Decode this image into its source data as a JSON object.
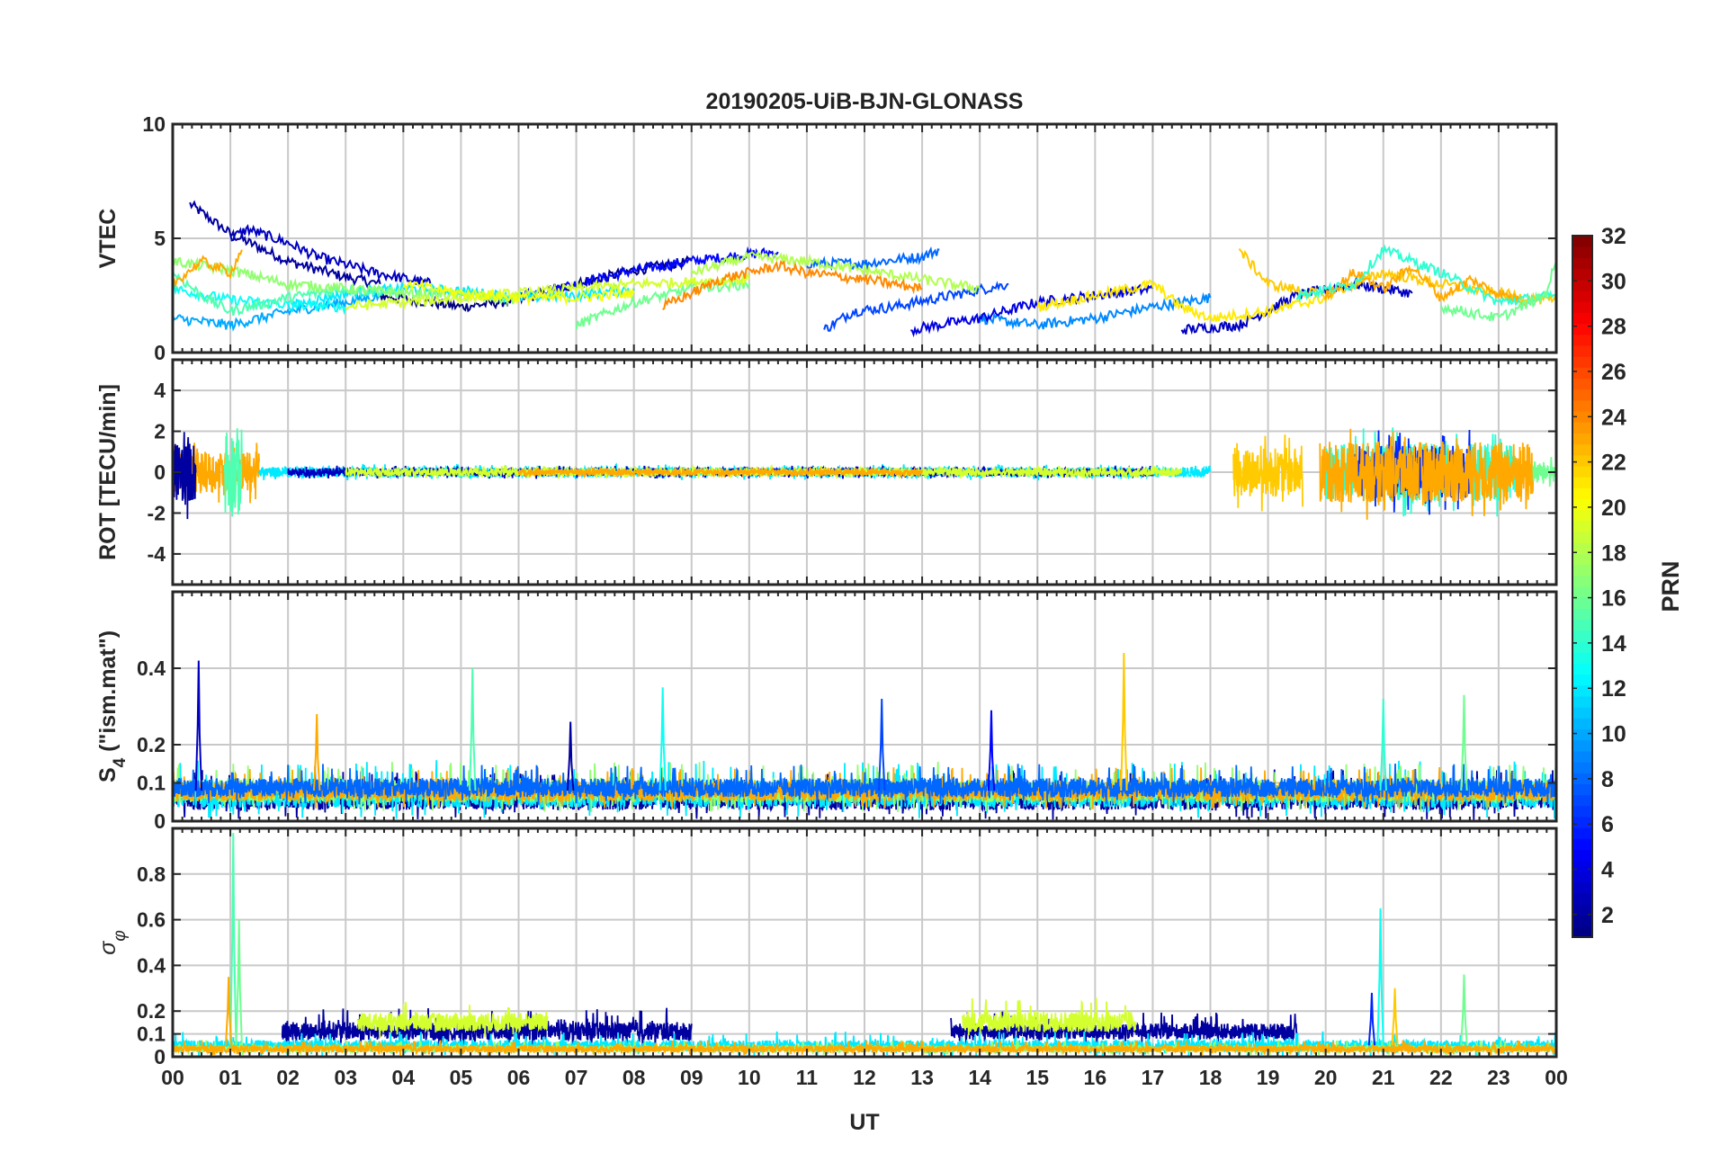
{
  "chart_data": {
    "type": "line",
    "title": "20190205-UiB-BJN-GLONASS",
    "xlabel": "UT",
    "x_tick_labels": [
      "00",
      "01",
      "02",
      "03",
      "04",
      "05",
      "06",
      "07",
      "08",
      "09",
      "10",
      "11",
      "12",
      "13",
      "14",
      "15",
      "16",
      "17",
      "18",
      "19",
      "20",
      "21",
      "22",
      "23",
      "00"
    ],
    "x_range_hours": [
      0,
      24
    ],
    "grid": true,
    "panels": [
      {
        "id": "vtec",
        "ylabel": "VTEC",
        "ylim": [
          0,
          10
        ],
        "yticks": [
          {
            "v": 0,
            "label": "0"
          },
          {
            "v": 5,
            "label": "5"
          },
          {
            "v": 10,
            "label": "10"
          }
        ],
        "series": [
          {
            "prn": 2,
            "x": [
              0.3,
              1.0,
              2.0,
              3.0,
              3.6
            ],
            "y": [
              6.5,
              5.2,
              4.0,
              3.3,
              3.0
            ]
          },
          {
            "prn": 1,
            "x": [
              3.6,
              5.0,
              6.0,
              7.0,
              8.0,
              9.0
            ],
            "y": [
              2.5,
              2.0,
              2.3,
              3.0,
              3.6,
              4.0
            ]
          },
          {
            "prn": 5,
            "x": [
              6.0,
              7.0,
              8.0,
              9.0,
              10.0,
              10.5
            ],
            "y": [
              2.5,
              3.0,
              3.6,
              4.0,
              4.3,
              4.4
            ]
          },
          {
            "prn": 3,
            "x": [
              1.0,
              1.3,
              2.0,
              2.5,
              3.5,
              4.5
            ],
            "y": [
              5.0,
              5.4,
              4.8,
              4.2,
              3.5,
              3.0
            ]
          },
          {
            "prn": 8,
            "x": [
              11.0,
              12.0,
              13.0,
              13.3
            ],
            "y": [
              3.9,
              3.9,
              4.2,
              4.5
            ]
          },
          {
            "prn": 7,
            "x": [
              11.3,
              11.8,
              12.5,
              13.5,
              14.5
            ],
            "y": [
              1.0,
              1.8,
              2.0,
              2.5,
              3.0
            ]
          },
          {
            "prn": 9,
            "x": [
              14.0,
              15.0,
              16.0,
              17.0,
              18.0
            ],
            "y": [
              1.5,
              1.2,
              1.5,
              2.0,
              2.4
            ]
          },
          {
            "prn": 4,
            "x": [
              12.8,
              14.0,
              15.0,
              16.0,
              17.0
            ],
            "y": [
              1.0,
              1.5,
              2.2,
              2.5,
              2.8
            ]
          },
          {
            "prn": 3,
            "x": [
              17.5,
              18.5,
              19.5,
              20.5,
              21.5
            ],
            "y": [
              1.0,
              1.2,
              2.5,
              3.0,
              2.6
            ]
          },
          {
            "prn": 10,
            "x": [
              0.0,
              1.0,
              2.0,
              3.0,
              3.6
            ],
            "y": [
              1.5,
              1.2,
              1.8,
              2.2,
              2.5
            ]
          },
          {
            "prn": 12,
            "x": [
              2.0,
              3.0,
              4.0,
              5.0,
              6.0,
              7.0,
              8.0
            ],
            "y": [
              2.0,
              2.6,
              2.8,
              2.7,
              2.4,
              2.5,
              2.8
            ]
          },
          {
            "prn": 13,
            "x": [
              0.0,
              1.0,
              2.0,
              3.0
            ],
            "y": [
              2.8,
              2.3,
              2.1,
              2.0
            ]
          },
          {
            "prn": 15,
            "x": [
              0.0,
              0.5,
              1.0,
              2.0,
              3.0,
              4.0
            ],
            "y": [
              3.5,
              2.5,
              1.8,
              2.4,
              2.8,
              2.6
            ]
          },
          {
            "prn": 16,
            "x": [
              7.0,
              8.0,
              9.0,
              10.0
            ],
            "y": [
              1.2,
              2.2,
              2.8,
              3.0
            ]
          },
          {
            "prn": 17,
            "x": [
              0.0,
              1.0,
              2.0,
              3.0,
              4.0,
              5.0,
              6.0
            ],
            "y": [
              4.0,
              3.6,
              3.0,
              2.8,
              2.6,
              2.5,
              2.3
            ]
          },
          {
            "prn": 18,
            "x": [
              9.0,
              10.0,
              11.0,
              12.0,
              13.0,
              14.0
            ],
            "y": [
              3.5,
              4.2,
              4.0,
              3.6,
              3.2,
              2.8
            ]
          },
          {
            "prn": 19,
            "x": [
              3.0,
              4.0,
              5.0,
              6.0,
              7.0,
              8.0,
              9.0,
              10.0
            ],
            "y": [
              2.0,
              2.2,
              2.4,
              2.6,
              2.8,
              3.0,
              3.1,
              3.2
            ]
          },
          {
            "prn": 20,
            "x": [
              4.0,
              5.0,
              6.0,
              7.0,
              8.0
            ],
            "y": [
              3.0,
              2.6,
              2.4,
              2.4,
              2.6
            ]
          },
          {
            "prn": 21,
            "x": [
              15.0,
              16.0,
              17.0,
              17.5,
              18.0,
              19.0,
              20.0
            ],
            "y": [
              2.0,
              2.5,
              3.0,
              2.0,
              1.5,
              1.8,
              2.4
            ]
          },
          {
            "prn": 22,
            "x": [
              18.5,
              19.0,
              20.0,
              21.0,
              22.0,
              23.0,
              24.0
            ],
            "y": [
              4.5,
              3.0,
              2.5,
              3.5,
              3.0,
              2.6,
              2.2
            ]
          },
          {
            "prn": 23,
            "x": [
              0.0,
              0.5,
              1.0,
              1.2
            ],
            "y": [
              3.0,
              4.0,
              3.5,
              4.5
            ]
          },
          {
            "prn": 24,
            "x": [
              8.5,
              9.5,
              10.5,
              11.0,
              12.0,
              13.0
            ],
            "y": [
              2.0,
              3.2,
              3.8,
              3.5,
              3.2,
              2.8
            ]
          },
          {
            "prn": 23,
            "x": [
              20.0,
              20.5,
              21.0,
              21.5,
              22.0,
              22.5,
              23.0,
              23.5
            ],
            "y": [
              2.5,
              3.5,
              2.8,
              3.8,
              2.4,
              3.2,
              2.6,
              2.2
            ]
          },
          {
            "prn": 14,
            "x": [
              19.5,
              20.5,
              21.0,
              22.0,
              23.0,
              24.0
            ],
            "y": [
              2.5,
              3.0,
              4.5,
              3.5,
              2.2,
              2.5
            ]
          },
          {
            "prn": 16,
            "x": [
              22.0,
              23.0,
              23.8,
              24.0
            ],
            "y": [
              2.0,
              1.5,
              2.5,
              4.0
            ]
          }
        ]
      },
      {
        "id": "rot",
        "ylabel": "ROT [TECU/min]",
        "ylim": [
          -5.5,
          5.5
        ],
        "yticks": [
          {
            "v": -4,
            "label": "-4"
          },
          {
            "v": -2,
            "label": "-2"
          },
          {
            "v": 0,
            "label": "0"
          },
          {
            "v": 2,
            "label": "2"
          },
          {
            "v": 4,
            "label": "4"
          }
        ],
        "noise_bands": [
          {
            "prn": 23,
            "x0": 0.0,
            "x1": 1.5,
            "amp": 1.0
          },
          {
            "prn": 2,
            "x0": 0.0,
            "x1": 0.4,
            "amp": 1.5
          },
          {
            "prn": 15,
            "x0": 0.9,
            "x1": 1.2,
            "amp": 2.2
          },
          {
            "prn": 12,
            "x0": 1.5,
            "x1": 18.0,
            "amp": 0.25
          },
          {
            "prn": 3,
            "x0": 2.0,
            "x1": 17.0,
            "amp": 0.2
          },
          {
            "prn": 19,
            "x0": 3.0,
            "x1": 17.5,
            "amp": 0.2
          },
          {
            "prn": 23,
            "x0": 6.0,
            "x1": 13.0,
            "amp": 0.15
          },
          {
            "prn": 22,
            "x0": 18.4,
            "x1": 19.6,
            "amp": 1.2
          },
          {
            "prn": 14,
            "x0": 20.0,
            "x1": 23.3,
            "amp": 1.4
          },
          {
            "prn": 6,
            "x0": 20.5,
            "x1": 22.5,
            "amp": 1.3
          },
          {
            "prn": 23,
            "x0": 19.9,
            "x1": 23.6,
            "amp": 1.5
          },
          {
            "prn": 16,
            "x0": 23.6,
            "x1": 24.0,
            "amp": 0.5
          }
        ]
      },
      {
        "id": "s4",
        "ylabel": "S4 (\"ism.mat\")",
        "ylabel_main": "S",
        "ylabel_sub": "4",
        "ylabel_rest": " (\"ism.mat\")",
        "ylim": [
          0,
          0.6
        ],
        "yticks": [
          {
            "v": 0,
            "label": "0"
          },
          {
            "v": 0.1,
            "label": "0.1"
          },
          {
            "v": 0.2,
            "label": "0.2"
          },
          {
            "v": 0.4,
            "label": "0.4"
          }
        ],
        "noise_bands": [
          {
            "prn": 2,
            "x0": 0.0,
            "x1": 24.0,
            "base": 0.05,
            "amp": 0.06
          },
          {
            "prn": 12,
            "x0": 0.0,
            "x1": 24.0,
            "base": 0.06,
            "amp": 0.07
          },
          {
            "prn": 17,
            "x0": 0.0,
            "x1": 24.0,
            "base": 0.07,
            "amp": 0.06
          },
          {
            "prn": 23,
            "x0": 0.0,
            "x1": 24.0,
            "base": 0.07,
            "amp": 0.05
          },
          {
            "prn": 8,
            "x0": 0.0,
            "x1": 24.0,
            "base": 0.08,
            "amp": 0.05
          }
        ],
        "spikes": [
          {
            "prn": 3,
            "x": 0.45,
            "y": 0.42
          },
          {
            "prn": 15,
            "x": 5.2,
            "y": 0.4
          },
          {
            "prn": 13,
            "x": 8.5,
            "y": 0.35
          },
          {
            "prn": 22,
            "x": 16.5,
            "y": 0.44
          },
          {
            "prn": 7,
            "x": 12.3,
            "y": 0.32
          },
          {
            "prn": 16,
            "x": 22.4,
            "y": 0.33
          },
          {
            "prn": 14,
            "x": 21.0,
            "y": 0.32
          },
          {
            "prn": 2,
            "x": 6.9,
            "y": 0.26
          },
          {
            "prn": 23,
            "x": 2.5,
            "y": 0.28
          },
          {
            "prn": 5,
            "x": 14.2,
            "y": 0.29
          }
        ]
      },
      {
        "id": "sigphi",
        "ylabel": "σ φ",
        "ylabel_main": "σ",
        "ylabel_sub": "φ",
        "ylim": [
          0,
          1.0
        ],
        "yticks": [
          {
            "v": 0,
            "label": "0"
          },
          {
            "v": 0.1,
            "label": "0.1"
          },
          {
            "v": 0.2,
            "label": "0.2"
          },
          {
            "v": 0.4,
            "label": "0.4"
          },
          {
            "v": 0.6,
            "label": "0.6"
          },
          {
            "v": 0.8,
            "label": "0.8"
          }
        ],
        "noise_bands": [
          {
            "prn": 2,
            "x0": 1.9,
            "x1": 9.0,
            "base": 0.1,
            "amp": 0.08
          },
          {
            "prn": 19,
            "x0": 3.2,
            "x1": 6.5,
            "base": 0.14,
            "amp": 0.08
          },
          {
            "prn": 2,
            "x0": 13.5,
            "x1": 19.5,
            "base": 0.1,
            "amp": 0.07
          },
          {
            "prn": 19,
            "x0": 13.7,
            "x1": 16.7,
            "base": 0.14,
            "amp": 0.09
          },
          {
            "prn": 12,
            "x0": 0.0,
            "x1": 24.0,
            "base": 0.04,
            "amp": 0.05
          },
          {
            "prn": 17,
            "x0": 0.0,
            "x1": 24.0,
            "base": 0.03,
            "amp": 0.03
          },
          {
            "prn": 23,
            "x0": 0.0,
            "x1": 24.0,
            "base": 0.03,
            "amp": 0.03
          }
        ],
        "spikes": [
          {
            "prn": 15,
            "x": 1.05,
            "y": 0.98
          },
          {
            "prn": 16,
            "x": 1.15,
            "y": 0.6
          },
          {
            "prn": 23,
            "x": 0.97,
            "y": 0.35
          },
          {
            "prn": 13,
            "x": 20.95,
            "y": 0.65
          },
          {
            "prn": 22,
            "x": 21.2,
            "y": 0.3
          },
          {
            "prn": 16,
            "x": 22.4,
            "y": 0.36
          },
          {
            "prn": 6,
            "x": 20.8,
            "y": 0.28
          }
        ]
      }
    ],
    "colorbar": {
      "label": "PRN",
      "range": [
        1,
        32
      ],
      "colormap": "jet",
      "tick_values": [
        2,
        4,
        6,
        8,
        10,
        12,
        14,
        16,
        18,
        20,
        22,
        24,
        26,
        28,
        30,
        32
      ],
      "tick_labels": [
        "2",
        "4",
        "6",
        "8",
        "10",
        "12",
        "14",
        "16",
        "18",
        "20",
        "22",
        "24",
        "26",
        "28",
        "30",
        "32"
      ]
    }
  }
}
